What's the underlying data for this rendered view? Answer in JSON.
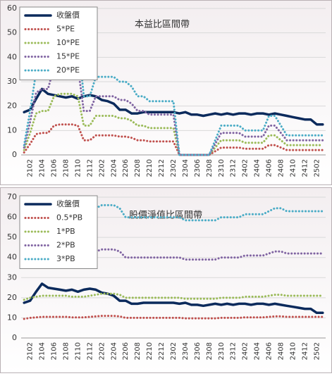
{
  "chart_data": [
    {
      "type": "line",
      "title": "本益比區間帶",
      "categories": [
        null,
        "2102",
        null,
        "2104",
        null,
        "2106",
        null,
        "2108",
        null,
        "2110",
        null,
        "2112",
        null,
        "2202",
        null,
        "2204",
        null,
        "2206",
        null,
        "2208",
        null,
        "2210",
        null,
        "2212",
        null,
        "2302",
        null,
        "2304",
        null,
        "2306",
        null,
        "2308",
        null,
        "2310",
        null,
        "2312",
        null,
        "2402",
        null,
        "2404",
        null,
        "2406",
        null,
        "2408",
        null,
        "2410",
        null,
        "2412",
        null,
        "2502",
        null
      ],
      "ylim": [
        0,
        60
      ],
      "yticks": [
        0,
        10,
        20,
        30,
        40,
        50,
        60
      ],
      "grid": true,
      "legend": "upper left",
      "series": [
        {
          "name": "收盤價",
          "color": "#0b2a5c",
          "values": [
            17.5,
            18.5,
            23,
            27,
            25,
            24.5,
            24,
            23.5,
            24,
            23,
            24,
            24.5,
            24,
            22.5,
            22,
            21,
            18.5,
            18.5,
            17,
            17,
            17.5,
            17.5,
            17.5,
            17.5,
            17.5,
            17.5,
            17,
            17.5,
            16.5,
            16.5,
            16,
            16.5,
            17,
            16.5,
            17,
            16.5,
            17,
            17,
            16.5,
            17,
            17,
            16.5,
            17,
            16.5,
            16,
            15.5,
            15,
            14.5,
            14.5,
            12.5,
            12.5
          ]
        },
        {
          "name": "5*PE",
          "color": "#c0504d",
          "values": [
            1,
            4.5,
            8.5,
            9,
            9,
            12,
            12.5,
            12.5,
            12.5,
            12,
            6,
            6,
            8,
            8,
            8,
            8,
            7.5,
            7.5,
            7,
            6,
            6,
            5.5,
            5.5,
            5.5,
            5.5,
            5.5,
            0,
            0,
            0,
            0,
            0,
            0,
            1.5,
            3,
            3,
            3,
            3,
            2.5,
            2.5,
            2.5,
            2.5,
            4,
            4,
            3,
            2,
            2,
            2,
            2,
            2,
            2,
            2
          ]
        },
        {
          "name": "10*PE",
          "color": "#9bbb59",
          "values": [
            2,
            9,
            17,
            18,
            18,
            24,
            25,
            25,
            25,
            24,
            12,
            12,
            16,
            16,
            16,
            16,
            15,
            15,
            14,
            12,
            12,
            11,
            11,
            11,
            11,
            11,
            0,
            0,
            0,
            0,
            0,
            0,
            3,
            6,
            6,
            6,
            6,
            5,
            5,
            5,
            5,
            8,
            8,
            6,
            4,
            4,
            4,
            4,
            4,
            4,
            4
          ]
        },
        {
          "name": "15*PE",
          "color": "#8064a2",
          "values": [
            3,
            13.5,
            25.5,
            27,
            27,
            36,
            37.5,
            37.5,
            37.5,
            36,
            18,
            18,
            24,
            24,
            24,
            24,
            22.5,
            22.5,
            21,
            18,
            18,
            16.5,
            16.5,
            16.5,
            16.5,
            16.5,
            0,
            0,
            0,
            0,
            0,
            0,
            4.5,
            9,
            9,
            9,
            9,
            7.5,
            7.5,
            7.5,
            7.5,
            12,
            12,
            9,
            6,
            6,
            6,
            6,
            6,
            6,
            6
          ]
        },
        {
          "name": "20*PE",
          "color": "#4bacc6",
          "values": [
            4,
            18,
            34,
            36,
            36,
            48,
            50,
            50,
            50,
            48,
            24,
            24,
            32,
            32,
            32,
            32,
            30,
            30,
            28,
            24,
            24,
            22,
            22,
            22,
            22,
            22,
            0,
            0,
            0,
            0,
            0,
            0,
            6,
            12,
            12,
            12,
            12,
            10,
            10,
            10,
            10,
            16,
            16,
            12,
            8,
            8,
            8,
            8,
            8,
            8,
            8
          ]
        }
      ]
    },
    {
      "type": "line",
      "title": "股價淨值比區間帶",
      "categories": [
        null,
        "2102",
        null,
        "2104",
        null,
        "2106",
        null,
        "2108",
        null,
        "2110",
        null,
        "2112",
        null,
        "2202",
        null,
        "2204",
        null,
        "2206",
        null,
        "2208",
        null,
        "2210",
        null,
        "2212",
        null,
        "2302",
        null,
        "2304",
        null,
        "2306",
        null,
        "2308",
        null,
        "2310",
        null,
        "2312",
        null,
        "2402",
        null,
        "2404",
        null,
        "2406",
        null,
        "2408",
        null,
        "2410",
        null,
        "2412",
        null,
        "2502",
        null
      ],
      "ylim": [
        0,
        70
      ],
      "yticks": [
        0,
        10,
        20,
        30,
        40,
        50,
        60,
        70
      ],
      "grid": true,
      "legend": "upper left",
      "series": [
        {
          "name": "收盤價",
          "color": "#0b2a5c",
          "values": [
            17.5,
            18.5,
            23,
            27,
            25,
            24.5,
            24,
            23.5,
            24,
            23,
            24,
            24.5,
            24,
            22.5,
            22,
            21,
            18.5,
            18.5,
            17,
            17,
            17.5,
            17.5,
            17.5,
            17.5,
            17.5,
            17.5,
            17,
            17.5,
            16.5,
            16.5,
            16,
            16.5,
            17,
            16.5,
            17,
            16.5,
            17,
            17,
            16.5,
            17,
            17,
            16.5,
            17,
            16.5,
            16,
            15.5,
            15,
            14.5,
            14.5,
            12.5,
            12.5
          ]
        },
        {
          "name": "0.5*PB",
          "color": "#c0504d",
          "values": [
            9.5,
            10,
            10.25,
            10.5,
            10.5,
            10.5,
            10.5,
            10.5,
            10.25,
            10.25,
            10.25,
            10.5,
            10.75,
            11,
            11,
            11,
            10.75,
            10,
            10,
            10,
            10,
            10,
            10,
            10,
            10,
            10,
            10,
            9.75,
            9.75,
            9.75,
            9.75,
            9.75,
            9.75,
            10,
            10,
            10,
            10,
            10.25,
            10.25,
            10.25,
            10.25,
            10.5,
            10.75,
            10.75,
            10.5,
            10.5,
            10.5,
            10.5,
            10.5,
            10.5,
            10.5
          ]
        },
        {
          "name": "1*PB",
          "color": "#9bbb59",
          "values": [
            19,
            20,
            20.5,
            21,
            21,
            21,
            21,
            21,
            20.5,
            20.5,
            20.5,
            21,
            21.5,
            22,
            22,
            22,
            21.5,
            20,
            20,
            20,
            20,
            20,
            20,
            20,
            20,
            20,
            20,
            19.5,
            19.5,
            19.5,
            19.5,
            19.5,
            19.5,
            20,
            20,
            20,
            20,
            20.5,
            20.5,
            20.5,
            20.5,
            21,
            21.5,
            21.5,
            21,
            21,
            21,
            21,
            21,
            21,
            21
          ]
        },
        {
          "name": "2*PB",
          "color": "#8064a2",
          "values": [
            38,
            40,
            41,
            42,
            42,
            42,
            42,
            42,
            41,
            41,
            41,
            42,
            43,
            44,
            44,
            44,
            43,
            40,
            40,
            40,
            40,
            40,
            40,
            40,
            40,
            40,
            40,
            39,
            39,
            39,
            39,
            39,
            39,
            40,
            40,
            40,
            40,
            41,
            41,
            41,
            41,
            42,
            43,
            43,
            42,
            42,
            42,
            42,
            42,
            42,
            42
          ]
        },
        {
          "name": "3*PB",
          "color": "#4bacc6",
          "values": [
            57,
            60,
            61.5,
            63,
            63,
            63,
            63,
            63,
            61.5,
            61.5,
            61.5,
            63,
            64.5,
            66,
            66,
            66,
            64.5,
            60,
            60,
            60,
            60,
            60,
            60,
            60,
            60,
            60,
            60,
            58.5,
            58.5,
            58.5,
            58.5,
            58.5,
            58.5,
            60,
            60,
            60,
            60,
            61.5,
            61.5,
            61.5,
            61.5,
            63,
            64.5,
            64.5,
            63,
            63,
            63,
            63,
            63,
            63,
            63
          ]
        }
      ]
    }
  ]
}
